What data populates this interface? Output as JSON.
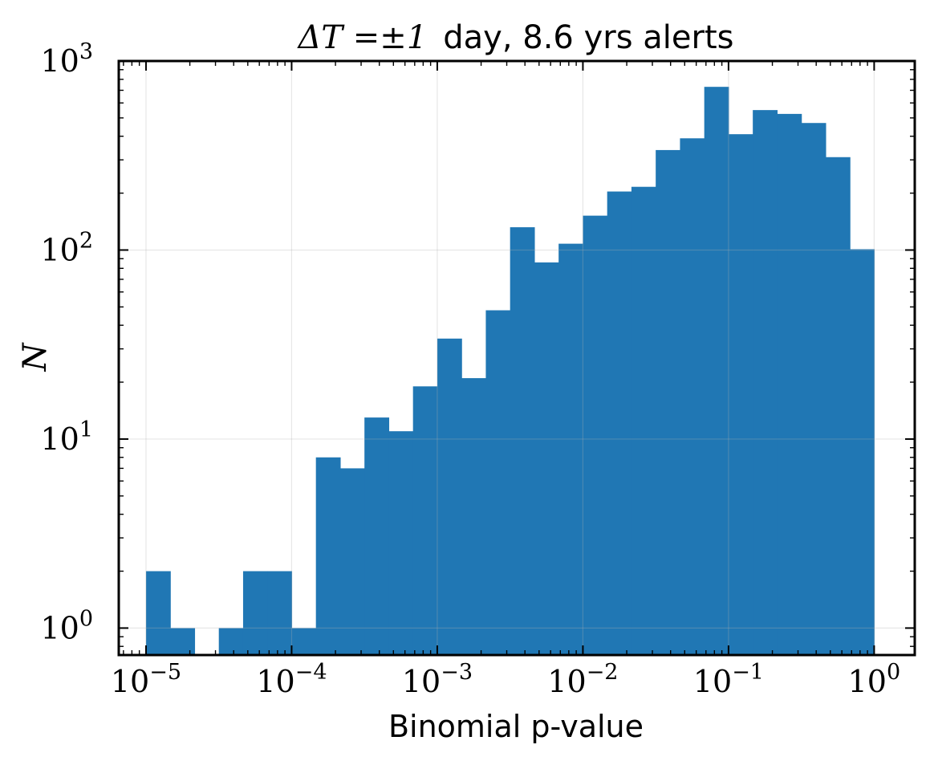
{
  "chart_data": {
    "type": "bar",
    "title": {
      "math_prefix": "ΔT =±1",
      "text_suffix": "day, 8.6 yrs alerts"
    },
    "xlabel": "Binomial p-value",
    "ylabel": "N",
    "x_scale": "log",
    "y_scale": "log",
    "xlim": [
      6.5e-06,
      1.9
    ],
    "ylim": [
      0.72,
      1000
    ],
    "grid": true,
    "x_ticks": [
      {
        "value": 1e-05,
        "base": "10",
        "exp": "−5"
      },
      {
        "value": 0.0001,
        "base": "10",
        "exp": "−4"
      },
      {
        "value": 0.001,
        "base": "10",
        "exp": "−3"
      },
      {
        "value": 0.01,
        "base": "10",
        "exp": "−2"
      },
      {
        "value": 0.1,
        "base": "10",
        "exp": "−1"
      },
      {
        "value": 1,
        "base": "10",
        "exp": "0"
      }
    ],
    "y_ticks": [
      {
        "value": 1,
        "base": "10",
        "exp": "0"
      },
      {
        "value": 10,
        "base": "10",
        "exp": "1"
      },
      {
        "value": 100,
        "base": "10",
        "exp": "2"
      },
      {
        "value": 1000,
        "base": "10",
        "exp": "3"
      }
    ],
    "bins": {
      "start": 1e-05,
      "stop": 1,
      "count": 30
    },
    "values": [
      2,
      1,
      0,
      1,
      2,
      2,
      1,
      8,
      7,
      13,
      11,
      19,
      34,
      21,
      48,
      132,
      86,
      108,
      152,
      204,
      216,
      338,
      390,
      730,
      410,
      550,
      525,
      470,
      310,
      101
    ],
    "bar_color": "#2077b4"
  }
}
